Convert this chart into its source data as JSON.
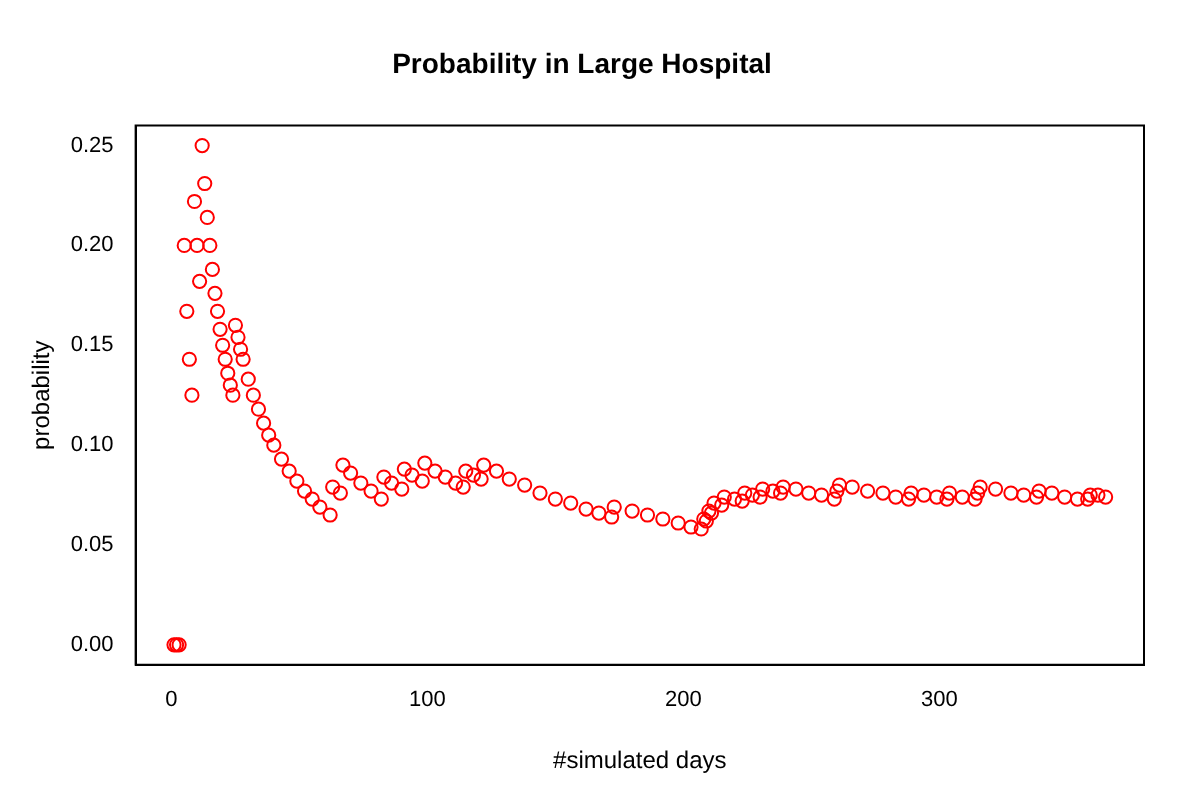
{
  "chart_data": {
    "type": "scatter",
    "title": "Probability in Large Hospital",
    "xlabel": "#simulated days",
    "ylabel": "probability",
    "x": [
      1,
      2,
      3,
      5,
      6,
      7,
      8,
      9,
      10,
      11,
      12,
      13,
      14,
      15,
      16,
      17,
      18,
      19,
      20,
      21,
      22,
      23,
      24,
      25,
      26,
      27,
      28,
      30,
      32,
      34,
      36,
      38,
      40,
      43,
      46,
      49,
      52,
      55,
      58,
      62,
      63,
      66,
      67,
      70,
      74,
      78,
      82,
      83,
      86,
      90,
      91,
      94,
      98,
      99,
      103,
      107,
      111,
      114,
      115,
      118,
      121,
      122,
      127,
      132,
      138,
      144,
      150,
      156,
      162,
      167,
      172,
      173,
      180,
      186,
      192,
      198,
      203,
      207,
      208,
      209,
      210,
      211,
      212,
      215,
      216,
      220,
      223,
      224,
      227,
      230,
      231,
      235,
      238,
      239,
      244,
      249,
      254,
      259,
      260,
      261,
      266,
      272,
      278,
      283,
      288,
      289,
      294,
      299,
      303,
      304,
      309,
      314,
      315,
      316,
      322,
      328,
      333,
      338,
      339,
      344,
      349,
      354,
      358,
      359,
      362,
      365
    ],
    "series": [
      {
        "color": "#ff0000",
        "values": [
          0,
          0,
          0,
          0.2,
          0.167,
          0.143,
          0.125,
          0.222,
          0.2,
          0.182,
          0.25,
          0.231,
          0.214,
          0.2,
          0.188,
          0.176,
          0.167,
          0.158,
          0.15,
          0.143,
          0.136,
          0.13,
          0.125,
          0.16,
          0.154,
          0.148,
          0.143,
          0.133,
          0.125,
          0.118,
          0.111,
          0.105,
          0.1,
          0.093,
          0.087,
          0.082,
          0.077,
          0.073,
          0.069,
          0.065,
          0.079,
          0.076,
          0.09,
          0.086,
          0.081,
          0.077,
          0.073,
          0.084,
          0.081,
          0.078,
          0.088,
          0.085,
          0.082,
          0.091,
          0.087,
          0.084,
          0.081,
          0.079,
          0.087,
          0.085,
          0.083,
          0.09,
          0.087,
          0.083,
          0.08,
          0.076,
          0.073,
          0.071,
          0.068,
          0.066,
          0.064,
          0.069,
          0.067,
          0.065,
          0.063,
          0.061,
          0.059,
          0.058,
          0.063,
          0.062,
          0.067,
          0.066,
          0.071,
          0.07,
          0.074,
          0.073,
          0.072,
          0.076,
          0.075,
          0.074,
          0.078,
          0.077,
          0.076,
          0.079,
          0.078,
          0.076,
          0.075,
          0.073,
          0.077,
          0.08,
          0.079,
          0.077,
          0.076,
          0.074,
          0.073,
          0.076,
          0.075,
          0.074,
          0.073,
          0.076,
          0.074,
          0.073,
          0.076,
          0.079,
          0.078,
          0.076,
          0.075,
          0.074,
          0.077,
          0.076,
          0.074,
          0.073,
          0.073,
          0.075,
          0.075,
          0.074
        ]
      }
    ],
    "xlim": [
      -14,
      380
    ],
    "ylim": [
      -0.01,
      0.26
    ],
    "xticks": [
      0,
      100,
      200,
      300
    ],
    "yticks": [
      {
        "value": 0,
        "label": "0.00"
      },
      {
        "value": 0.05,
        "label": "0.05"
      },
      {
        "value": 0.1,
        "label": "0.10"
      },
      {
        "value": 0.15,
        "label": "0.15"
      },
      {
        "value": 0.2,
        "label": "0.20"
      },
      {
        "value": 0.25,
        "label": "0.25"
      }
    ],
    "grid": false,
    "legend": false,
    "marker": "circle"
  }
}
